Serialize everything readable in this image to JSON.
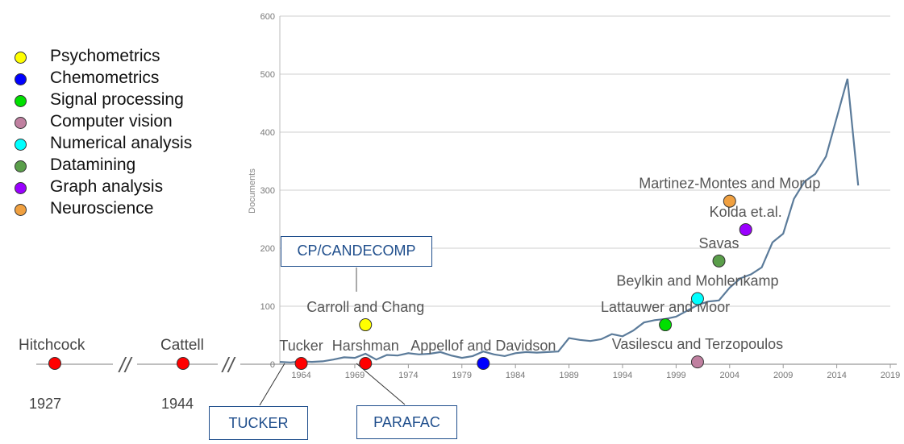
{
  "legend": [
    {
      "label": "Psychometrics",
      "color": "#ffff00"
    },
    {
      "label": "Chemometrics",
      "color": "#0000ff"
    },
    {
      "label": "Signal processing",
      "color": "#00e000"
    },
    {
      "label": "Computer vision",
      "color": "#c080a0"
    },
    {
      "label": "Numerical analysis",
      "color": "#00ffff"
    },
    {
      "label": "Datamining",
      "color": "#5a9e4a"
    },
    {
      "label": "Graph analysis",
      "color": "#9a00ff"
    },
    {
      "label": "Neuroscience",
      "color": "#f0a040"
    }
  ],
  "early_timeline": {
    "events": [
      {
        "name": "Hitchcock",
        "year": "1927",
        "color": "#ff0000"
      },
      {
        "name": "Cattell",
        "year": "1944",
        "color": "#ff0000"
      }
    ],
    "break_mark": "//"
  },
  "boxes": {
    "cp": "CP/CANDECOMP",
    "tucker": "TUCKER",
    "parafac": "PARAFAC"
  },
  "chart_data": {
    "type": "line",
    "title": "",
    "xlabel": "",
    "ylabel": "Documents",
    "xlim": [
      1962,
      2019
    ],
    "ylim": [
      0,
      600
    ],
    "x_ticks": [
      1964,
      1969,
      1974,
      1979,
      1984,
      1989,
      1994,
      1999,
      2004,
      2009,
      2014,
      2019
    ],
    "y_ticks": [
      0,
      100,
      200,
      300,
      400,
      500,
      600
    ],
    "grid": "horizontal",
    "series": [
      {
        "color": "#5b7b9a",
        "points": [
          [
            1962,
            4
          ],
          [
            1963,
            3
          ],
          [
            1964,
            5
          ],
          [
            1965,
            4
          ],
          [
            1966,
            5
          ],
          [
            1967,
            8
          ],
          [
            1968,
            12
          ],
          [
            1969,
            11
          ],
          [
            1970,
            18
          ],
          [
            1971,
            8
          ],
          [
            1972,
            16
          ],
          [
            1973,
            15
          ],
          [
            1974,
            19
          ],
          [
            1975,
            17
          ],
          [
            1976,
            18
          ],
          [
            1977,
            21
          ],
          [
            1978,
            15
          ],
          [
            1979,
            11
          ],
          [
            1980,
            14
          ],
          [
            1981,
            22
          ],
          [
            1982,
            17
          ],
          [
            1983,
            14
          ],
          [
            1984,
            19
          ],
          [
            1985,
            21
          ],
          [
            1986,
            20
          ],
          [
            1987,
            21
          ],
          [
            1988,
            22
          ],
          [
            1989,
            45
          ],
          [
            1990,
            42
          ],
          [
            1991,
            40
          ],
          [
            1992,
            43
          ],
          [
            1993,
            52
          ],
          [
            1994,
            48
          ],
          [
            1995,
            58
          ],
          [
            1996,
            72
          ],
          [
            1997,
            76
          ],
          [
            1998,
            78
          ],
          [
            1999,
            82
          ],
          [
            2000,
            92
          ],
          [
            2001,
            102
          ],
          [
            2002,
            108
          ],
          [
            2003,
            110
          ],
          [
            2004,
            132
          ],
          [
            2005,
            148
          ],
          [
            2006,
            155
          ],
          [
            2007,
            167
          ],
          [
            2008,
            210
          ],
          [
            2009,
            225
          ],
          [
            2010,
            285
          ],
          [
            2011,
            315
          ],
          [
            2012,
            328
          ],
          [
            2013,
            358
          ],
          [
            2014,
            425
          ],
          [
            2015,
            492
          ],
          [
            2016,
            308
          ]
        ]
      }
    ],
    "events": [
      {
        "name": "Tucker",
        "year": 1964,
        "y": 0,
        "color": "#ff0000"
      },
      {
        "name": "Harshman",
        "year": 1970,
        "y": 0,
        "color": "#ff0000"
      },
      {
        "name": "Carroll and Chang",
        "year": 1970,
        "y": 68,
        "color": "#ffff00"
      },
      {
        "name": "Appellof and Davidson",
        "year": 1981,
        "y": 0,
        "color": "#0000ff"
      },
      {
        "name": "Vasilescu and Terzopoulos",
        "year": 2001,
        "y": 4,
        "color": "#c080a0"
      },
      {
        "name": "Lattauwer and Moor",
        "year": 1998,
        "y": 68,
        "color": "#00e000"
      },
      {
        "name": "Beylkin and Mohlenkamp",
        "year": 2001,
        "y": 113,
        "color": "#00ffff"
      },
      {
        "name": "Savas",
        "year": 2003,
        "y": 178,
        "color": "#5a9e4a"
      },
      {
        "name": "Kolda et.al.",
        "year": 2005.5,
        "y": 232,
        "color": "#9a00ff"
      },
      {
        "name": "Martinez-Montes and Morup",
        "year": 2004,
        "y": 281,
        "color": "#f0a040"
      }
    ]
  }
}
